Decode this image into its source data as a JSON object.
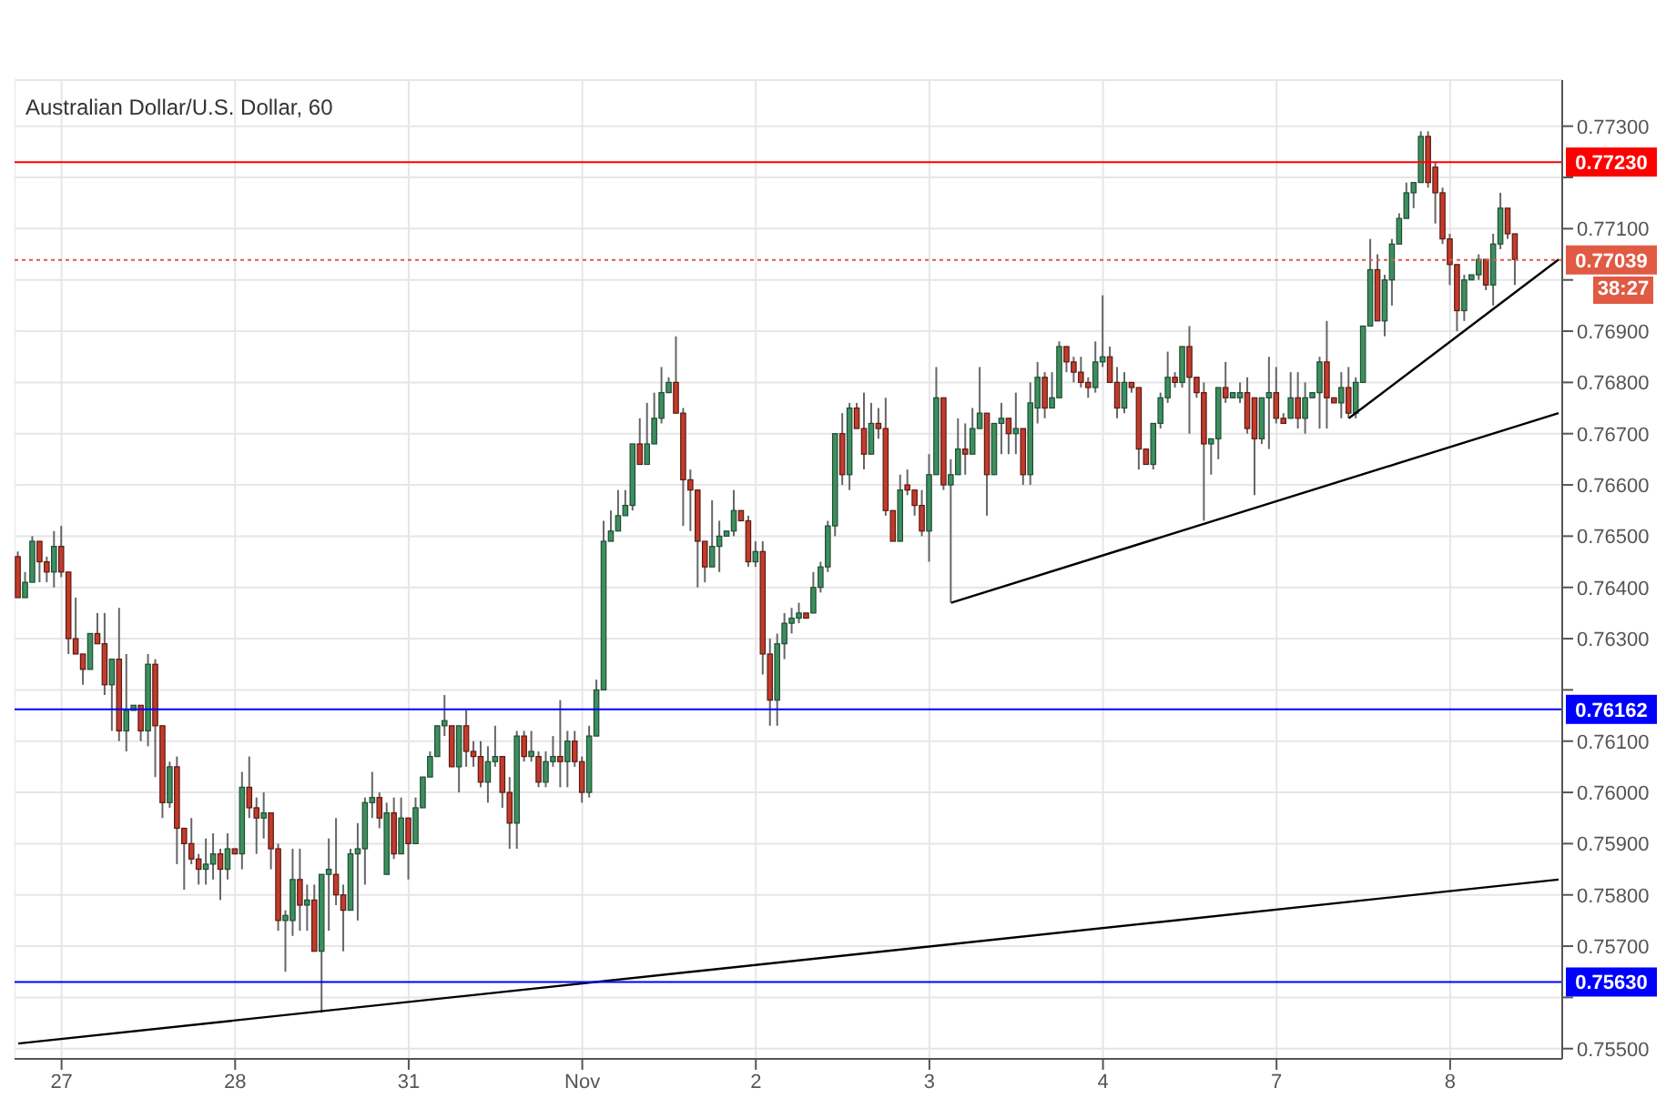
{
  "chart_data": {
    "type": "candlestick",
    "title": "Australian Dollar/U.S. Dollar, 60",
    "categories": [
      null,
      null,
      null,
      null,
      null,
      null,
      "27",
      null,
      null,
      null,
      null,
      null,
      null,
      null,
      null,
      null,
      null,
      null,
      null,
      null,
      null,
      null,
      null,
      null,
      null,
      null,
      null,
      null,
      null,
      null,
      "28",
      null,
      null,
      null,
      null,
      null,
      null,
      null,
      null,
      null,
      null,
      null,
      null,
      null,
      null,
      null,
      null,
      null,
      null,
      null,
      null,
      null,
      null,
      null,
      "31",
      null,
      null,
      null,
      null,
      null,
      null,
      null,
      null,
      null,
      null,
      null,
      null,
      null,
      null,
      null,
      null,
      null,
      null,
      null,
      null,
      null,
      null,
      null,
      "Nov",
      null,
      null,
      null,
      null,
      null,
      null,
      null,
      null,
      null,
      null,
      null,
      null,
      null,
      null,
      null,
      null,
      null,
      null,
      null,
      null,
      null,
      null,
      null,
      "2",
      null,
      null,
      null,
      null,
      null,
      null,
      null,
      null,
      null,
      null,
      null,
      null,
      null,
      null,
      null,
      null,
      null,
      null,
      null,
      null,
      null,
      null,
      null,
      "3",
      null,
      null,
      null,
      null,
      null,
      null,
      null,
      null,
      null,
      null,
      null,
      null,
      null,
      null,
      null,
      null,
      null,
      null,
      null,
      null,
      null,
      null,
      null,
      "4",
      null,
      null,
      null,
      null,
      null,
      null,
      null,
      null,
      null,
      null,
      null,
      null,
      null,
      null,
      null,
      null,
      null,
      null,
      null,
      null,
      null,
      null,
      null,
      "7",
      null,
      null,
      null,
      null,
      null,
      null,
      null,
      null,
      null,
      null,
      null,
      null,
      null,
      null,
      null,
      null,
      null,
      null,
      null,
      null,
      null,
      null,
      null,
      "8",
      null,
      null,
      null,
      null,
      null,
      null,
      null,
      null,
      null,
      null,
      null,
      null,
      null,
      null,
      null
    ],
    "ohlc": [
      [
        0.7646,
        0.7647,
        0.7638,
        0.7638
      ],
      [
        0.7638,
        0.7643,
        0.7638,
        0.7641
      ],
      [
        0.7641,
        0.765,
        0.7641,
        0.7649
      ],
      [
        0.7649,
        0.7649,
        0.7641,
        0.7645
      ],
      [
        0.7645,
        0.7646,
        0.7641,
        0.7643
      ],
      [
        0.7643,
        0.7651,
        0.764,
        0.7648
      ],
      [
        0.7648,
        0.7652,
        0.7642,
        0.7643
      ],
      [
        0.7643,
        0.7643,
        0.7627,
        0.763
      ],
      [
        0.763,
        0.7638,
        0.7627,
        0.7627
      ],
      [
        0.7627,
        0.7627,
        0.7621,
        0.7624
      ],
      [
        0.7624,
        0.7631,
        0.7624,
        0.7631
      ],
      [
        0.7631,
        0.7635,
        0.7629,
        0.7629
      ],
      [
        0.7629,
        0.7635,
        0.7619,
        0.7621
      ],
      [
        0.7621,
        0.7626,
        0.7612,
        0.7626
      ],
      [
        0.7626,
        0.7636,
        0.761,
        0.7612
      ],
      [
        0.7612,
        0.7627,
        0.7608,
        0.7616
      ],
      [
        0.7616,
        0.7617,
        0.7616,
        0.7617
      ],
      [
        0.7617,
        0.7617,
        0.761,
        0.7612
      ],
      [
        0.7612,
        0.7627,
        0.7609,
        0.7625
      ],
      [
        0.7625,
        0.7626,
        0.7603,
        0.7613
      ],
      [
        0.7613,
        0.7613,
        0.7595,
        0.7598
      ],
      [
        0.7598,
        0.7606,
        0.7597,
        0.7605
      ],
      [
        0.7605,
        0.7607,
        0.7586,
        0.7593
      ],
      [
        0.7593,
        0.7593,
        0.7581,
        0.759
      ],
      [
        0.759,
        0.7595,
        0.7586,
        0.7587
      ],
      [
        0.7587,
        0.7588,
        0.7582,
        0.7585
      ],
      [
        0.7585,
        0.7591,
        0.7582,
        0.7586
      ],
      [
        0.7586,
        0.7592,
        0.7583,
        0.7588
      ],
      [
        0.7588,
        0.7589,
        0.7579,
        0.7585
      ],
      [
        0.7585,
        0.7592,
        0.7583,
        0.7589
      ],
      [
        0.7589,
        0.7589,
        0.7588,
        0.7588
      ],
      [
        0.7588,
        0.7604,
        0.7585,
        0.7601
      ],
      [
        0.7601,
        0.7607,
        0.7595,
        0.7597
      ],
      [
        0.7597,
        0.7599,
        0.7588,
        0.7595
      ],
      [
        0.7595,
        0.76,
        0.7591,
        0.7596
      ],
      [
        0.7596,
        0.7596,
        0.7585,
        0.7589
      ],
      [
        0.7589,
        0.759,
        0.7573,
        0.7575
      ],
      [
        0.7575,
        0.7577,
        0.7565,
        0.7576
      ],
      [
        0.7575,
        0.7589,
        0.7572,
        0.7583
      ],
      [
        0.7583,
        0.7589,
        0.7573,
        0.7578
      ],
      [
        0.7578,
        0.7582,
        0.7573,
        0.7579
      ],
      [
        0.7579,
        0.7582,
        0.7569,
        0.7569
      ],
      [
        0.7569,
        0.7584,
        0.7557,
        0.7584
      ],
      [
        0.7584,
        0.7591,
        0.7573,
        0.7585
      ],
      [
        0.7584,
        0.7595,
        0.7578,
        0.758
      ],
      [
        0.758,
        0.7582,
        0.7569,
        0.7577
      ],
      [
        0.7577,
        0.7589,
        0.7577,
        0.7588
      ],
      [
        0.7588,
        0.7594,
        0.7575,
        0.7589
      ],
      [
        0.7589,
        0.7599,
        0.7582,
        0.7598
      ],
      [
        0.7598,
        0.7604,
        0.7595,
        0.7599
      ],
      [
        0.7599,
        0.76,
        0.7593,
        0.7595
      ],
      [
        0.7584,
        0.7598,
        0.7584,
        0.7596
      ],
      [
        0.7596,
        0.7599,
        0.7587,
        0.7588
      ],
      [
        0.7588,
        0.7599,
        0.7588,
        0.7595
      ],
      [
        0.7595,
        0.7595,
        0.7583,
        0.759
      ],
      [
        0.759,
        0.7599,
        0.759,
        0.7597
      ],
      [
        0.7597,
        0.7603,
        0.7597,
        0.7603
      ],
      [
        0.7603,
        0.7608,
        0.7603,
        0.7607
      ],
      [
        0.7607,
        0.7613,
        0.7607,
        0.7613
      ],
      [
        0.7613,
        0.7619,
        0.7611,
        0.7614
      ],
      [
        0.7613,
        0.7613,
        0.7605,
        0.7605
      ],
      [
        0.7605,
        0.7613,
        0.76,
        0.7613
      ],
      [
        0.7613,
        0.7616,
        0.7605,
        0.7608
      ],
      [
        0.7608,
        0.761,
        0.7605,
        0.7607
      ],
      [
        0.7607,
        0.761,
        0.7601,
        0.7602
      ],
      [
        0.7602,
        0.7609,
        0.7598,
        0.7606
      ],
      [
        0.7606,
        0.7613,
        0.7605,
        0.7607
      ],
      [
        0.7607,
        0.7607,
        0.7597,
        0.76
      ],
      [
        0.76,
        0.7603,
        0.7589,
        0.7594
      ],
      [
        0.7594,
        0.7612,
        0.7589,
        0.7611
      ],
      [
        0.7611,
        0.7612,
        0.7606,
        0.7607
      ],
      [
        0.7607,
        0.7612,
        0.7606,
        0.7608
      ],
      [
        0.7607,
        0.7608,
        0.7601,
        0.7602
      ],
      [
        0.7602,
        0.7608,
        0.7601,
        0.7606
      ],
      [
        0.7606,
        0.7611,
        0.7605,
        0.7607
      ],
      [
        0.7607,
        0.7618,
        0.7601,
        0.7606
      ],
      [
        0.7606,
        0.7612,
        0.7601,
        0.761
      ],
      [
        0.761,
        0.7612,
        0.7605,
        0.7606
      ],
      [
        0.7606,
        0.7607,
        0.7598,
        0.76
      ],
      [
        0.76,
        0.7613,
        0.7599,
        0.7611
      ],
      [
        0.7611,
        0.7622,
        0.7611,
        0.762
      ],
      [
        0.762,
        0.7653,
        0.762,
        0.7649
      ],
      [
        0.7649,
        0.7655,
        0.7649,
        0.7651
      ],
      [
        0.7651,
        0.7659,
        0.7651,
        0.7654
      ],
      [
        0.7654,
        0.7659,
        0.7654,
        0.7656
      ],
      [
        0.7656,
        0.7668,
        0.7655,
        0.7668
      ],
      [
        0.7668,
        0.7673,
        0.7664,
        0.7664
      ],
      [
        0.7664,
        0.7676,
        0.7664,
        0.7668
      ],
      [
        0.7668,
        0.7678,
        0.7668,
        0.7673
      ],
      [
        0.7673,
        0.7683,
        0.7672,
        0.7678
      ],
      [
        0.7678,
        0.7681,
        0.7678,
        0.768
      ],
      [
        0.768,
        0.7689,
        0.7674,
        0.7674
      ],
      [
        0.7674,
        0.7675,
        0.7652,
        0.7661
      ],
      [
        0.7661,
        0.7663,
        0.7651,
        0.7659
      ],
      [
        0.7659,
        0.7659,
        0.764,
        0.7649
      ],
      [
        0.7649,
        0.7649,
        0.7641,
        0.7644
      ],
      [
        0.7644,
        0.7657,
        0.7644,
        0.7648
      ],
      [
        0.7648,
        0.7653,
        0.7643,
        0.765
      ],
      [
        0.765,
        0.7651,
        0.765,
        0.7651
      ],
      [
        0.7651,
        0.7659,
        0.765,
        0.7655
      ],
      [
        0.7655,
        0.7655,
        0.7653,
        0.7653
      ],
      [
        0.7653,
        0.7654,
        0.7644,
        0.7645
      ],
      [
        0.7645,
        0.7649,
        0.7644,
        0.7647
      ],
      [
        0.7647,
        0.7649,
        0.7623,
        0.7627
      ],
      [
        0.7627,
        0.763,
        0.7613,
        0.7618
      ],
      [
        0.7618,
        0.7631,
        0.7613,
        0.7629
      ],
      [
        0.7629,
        0.7635,
        0.7626,
        0.7633
      ],
      [
        0.7633,
        0.7636,
        0.7631,
        0.7634
      ],
      [
        0.7634,
        0.7637,
        0.7633,
        0.7635
      ],
      [
        0.7635,
        0.7635,
        0.7634,
        0.7634
      ],
      [
        0.7635,
        0.7643,
        0.7635,
        0.764
      ],
      [
        0.764,
        0.7645,
        0.7639,
        0.7644
      ],
      [
        0.7644,
        0.7653,
        0.7643,
        0.7652
      ],
      [
        0.7652,
        0.767,
        0.765,
        0.767
      ],
      [
        0.767,
        0.7674,
        0.766,
        0.7662
      ],
      [
        0.7662,
        0.7676,
        0.7659,
        0.7675
      ],
      [
        0.7675,
        0.7676,
        0.7671,
        0.7671
      ],
      [
        0.7671,
        0.7678,
        0.7663,
        0.7666
      ],
      [
        0.7666,
        0.7676,
        0.7666,
        0.7672
      ],
      [
        0.7672,
        0.7675,
        0.7669,
        0.7671
      ],
      [
        0.7671,
        0.7677,
        0.7654,
        0.7655
      ],
      [
        0.7655,
        0.7655,
        0.7649,
        0.7649
      ],
      [
        0.7649,
        0.7662,
        0.7649,
        0.7659
      ],
      [
        0.766,
        0.7663,
        0.7658,
        0.7659
      ],
      [
        0.7659,
        0.7659,
        0.7654,
        0.7656
      ],
      [
        0.7656,
        0.7659,
        0.765,
        0.7651
      ],
      [
        0.7651,
        0.7666,
        0.7645,
        0.7662
      ],
      [
        0.7662,
        0.7683,
        0.7662,
        0.7677
      ],
      [
        0.7677,
        0.7677,
        0.7659,
        0.766
      ],
      [
        0.766,
        0.7665,
        0.7637,
        0.7662
      ],
      [
        0.7662,
        0.7673,
        0.7662,
        0.7667
      ],
      [
        0.7667,
        0.7672,
        0.7662,
        0.7666
      ],
      [
        0.7666,
        0.7675,
        0.7666,
        0.7671
      ],
      [
        0.7671,
        0.7683,
        0.7671,
        0.7674
      ],
      [
        0.7674,
        0.7674,
        0.7654,
        0.7662
      ],
      [
        0.7662,
        0.7672,
        0.7662,
        0.7672
      ],
      [
        0.7672,
        0.7676,
        0.7666,
        0.7673
      ],
      [
        0.7673,
        0.7673,
        0.7666,
        0.767
      ],
      [
        0.767,
        0.7678,
        0.7666,
        0.7671
      ],
      [
        0.7671,
        0.7671,
        0.766,
        0.7662
      ],
      [
        0.7662,
        0.768,
        0.766,
        0.7676
      ],
      [
        0.7675,
        0.7684,
        0.7672,
        0.7681
      ],
      [
        0.7681,
        0.7682,
        0.7673,
        0.7675
      ],
      [
        0.7675,
        0.7682,
        0.7675,
        0.7677
      ],
      [
        0.7677,
        0.7688,
        0.7677,
        0.7687
      ],
      [
        0.7687,
        0.7687,
        0.7682,
        0.7684
      ],
      [
        0.7684,
        0.7685,
        0.768,
        0.7682
      ],
      [
        0.7682,
        0.7685,
        0.7679,
        0.768
      ],
      [
        0.768,
        0.7681,
        0.7677,
        0.7679
      ],
      [
        0.7679,
        0.7688,
        0.7678,
        0.7684
      ],
      [
        0.7684,
        0.7697,
        0.7683,
        0.7685
      ],
      [
        0.7685,
        0.7687,
        0.768,
        0.768
      ],
      [
        0.768,
        0.7683,
        0.7673,
        0.7675
      ],
      [
        0.7675,
        0.7682,
        0.7674,
        0.768
      ],
      [
        0.768,
        0.768,
        0.7678,
        0.7679
      ],
      [
        0.7679,
        0.7679,
        0.7663,
        0.7667
      ],
      [
        0.7667,
        0.7667,
        0.7664,
        0.7664
      ],
      [
        0.7664,
        0.7672,
        0.7663,
        0.7672
      ],
      [
        0.7672,
        0.7678,
        0.7671,
        0.7677
      ],
      [
        0.7677,
        0.7686,
        0.7676,
        0.7681
      ],
      [
        0.7681,
        0.7682,
        0.7679,
        0.768
      ],
      [
        0.768,
        0.7687,
        0.7679,
        0.7687
      ],
      [
        0.7687,
        0.7691,
        0.767,
        0.7681
      ],
      [
        0.7681,
        0.7681,
        0.7677,
        0.7678
      ],
      [
        0.7678,
        0.768,
        0.7653,
        0.7668
      ],
      [
        0.7668,
        0.7669,
        0.7662,
        0.7669
      ],
      [
        0.7669,
        0.7679,
        0.7665,
        0.7679
      ],
      [
        0.7679,
        0.7684,
        0.7676,
        0.7677
      ],
      [
        0.7677,
        0.7678,
        0.7677,
        0.7678
      ],
      [
        0.7677,
        0.768,
        0.7676,
        0.7678
      ],
      [
        0.7678,
        0.7681,
        0.767,
        0.7671
      ],
      [
        0.7677,
        0.7677,
        0.7658,
        0.7669
      ],
      [
        0.7669,
        0.7677,
        0.7668,
        0.7677
      ],
      [
        0.7677,
        0.7685,
        0.7667,
        0.7678
      ],
      [
        0.7678,
        0.7683,
        0.7672,
        0.7673
      ],
      [
        0.7673,
        0.7674,
        0.7672,
        0.7672
      ],
      [
        0.7673,
        0.7682,
        0.7673,
        0.7677
      ],
      [
        0.7677,
        0.7682,
        0.7671,
        0.7673
      ],
      [
        0.7673,
        0.768,
        0.767,
        0.7677
      ],
      [
        0.7677,
        0.7678,
        0.7677,
        0.7678
      ],
      [
        0.7678,
        0.7685,
        0.7671,
        0.7684
      ],
      [
        0.7684,
        0.7692,
        0.7671,
        0.7677
      ],
      [
        0.7677,
        0.7677,
        0.7676,
        0.7676
      ],
      [
        0.7676,
        0.7682,
        0.7673,
        0.7679
      ],
      [
        0.7679,
        0.7683,
        0.7673,
        0.7674
      ],
      [
        0.7674,
        0.7681,
        0.7673,
        0.768
      ],
      [
        0.768,
        0.7691,
        0.768,
        0.7691
      ],
      [
        0.7691,
        0.7708,
        0.7691,
        0.7702
      ],
      [
        0.7702,
        0.7705,
        0.7692,
        0.7692
      ],
      [
        0.7692,
        0.7701,
        0.7689,
        0.77
      ],
      [
        0.77,
        0.7708,
        0.7695,
        0.7707
      ],
      [
        0.7707,
        0.7713,
        0.7707,
        0.7712
      ],
      [
        0.7712,
        0.7719,
        0.7712,
        0.7717
      ],
      [
        0.7717,
        0.7719,
        0.7714,
        0.7719
      ],
      [
        0.7719,
        0.7729,
        0.7719,
        0.7728
      ],
      [
        0.7728,
        0.7729,
        0.7718,
        0.7719
      ],
      [
        0.7722,
        0.7723,
        0.7711,
        0.7717
      ],
      [
        0.7717,
        0.7718,
        0.7707,
        0.7708
      ],
      [
        0.7708,
        0.7709,
        0.7699,
        0.7703
      ],
      [
        0.7703,
        0.7703,
        0.769,
        0.7694
      ],
      [
        0.7694,
        0.7701,
        0.7692,
        0.77
      ],
      [
        0.77,
        0.7701,
        0.77,
        0.7701
      ],
      [
        0.7701,
        0.7705,
        0.77,
        0.7704
      ],
      [
        0.7704,
        0.7704,
        0.7698,
        0.7699
      ],
      [
        0.7699,
        0.7709,
        0.7695,
        0.7707
      ],
      [
        0.7707,
        0.7717,
        0.7706,
        0.7714
      ],
      [
        0.7714,
        0.7714,
        0.7708,
        0.7709
      ],
      [
        0.7709,
        0.7709,
        0.7699,
        0.7704
      ],
      null,
      null,
      null,
      null,
      null,
      null
    ],
    "series": [
      {
        "type": "line",
        "color": "#000000",
        "values": [
          0.7551,
          null,
          null,
          null,
          null,
          null,
          null,
          null,
          null,
          null,
          null,
          null,
          null,
          null,
          null,
          null,
          null,
          null,
          null,
          null,
          null,
          null,
          null,
          null,
          null,
          null,
          null,
          null,
          null,
          null,
          null,
          null,
          null,
          null,
          null,
          null,
          null,
          null,
          null,
          null,
          null,
          null,
          null,
          null,
          null,
          null,
          null,
          null,
          null,
          null,
          null,
          null,
          null,
          null,
          null,
          null,
          null,
          null,
          null,
          null,
          null,
          null,
          null,
          null,
          null,
          null,
          null,
          null,
          null,
          null,
          null,
          null,
          null,
          null,
          null,
          null,
          null,
          null,
          null,
          null,
          null,
          null,
          null,
          null,
          null,
          null,
          null,
          null,
          null,
          null,
          null,
          null,
          null,
          null,
          null,
          null,
          null,
          null,
          null,
          null,
          null,
          null,
          null,
          null,
          null,
          null,
          null,
          null,
          null,
          null,
          null,
          null,
          null,
          null,
          null,
          null,
          null,
          null,
          null,
          null,
          null,
          null,
          null,
          null,
          null,
          null,
          null,
          null,
          null,
          null,
          null,
          null,
          null,
          null,
          null,
          null,
          null,
          null,
          null,
          null,
          null,
          null,
          null,
          null,
          null,
          null,
          null,
          null,
          null,
          null,
          null,
          null,
          null,
          null,
          null,
          null,
          null,
          null,
          null,
          null,
          null,
          null,
          null,
          null,
          null,
          null,
          null,
          null,
          null,
          null,
          null,
          null,
          null,
          null,
          null,
          null,
          null,
          null,
          null,
          null,
          null,
          null,
          null,
          null,
          null,
          null,
          null,
          null,
          null,
          null,
          null,
          null,
          null,
          null,
          null,
          null,
          null,
          null,
          null,
          null,
          null,
          null,
          null,
          null,
          null,
          null,
          null,
          null,
          null,
          null,
          null,
          null,
          null,
          0.7583
        ]
      },
      {
        "type": "line",
        "color": "#000000",
        "values": [
          null,
          null,
          null,
          null,
          null,
          null,
          null,
          null,
          null,
          null,
          null,
          null,
          null,
          null,
          null,
          null,
          null,
          null,
          null,
          null,
          null,
          null,
          null,
          null,
          null,
          null,
          null,
          null,
          null,
          null,
          null,
          null,
          null,
          null,
          null,
          null,
          null,
          null,
          null,
          null,
          null,
          null,
          null,
          null,
          null,
          null,
          null,
          null,
          null,
          null,
          null,
          null,
          null,
          null,
          null,
          null,
          null,
          null,
          null,
          null,
          null,
          null,
          null,
          null,
          null,
          null,
          null,
          null,
          null,
          null,
          null,
          null,
          null,
          null,
          null,
          null,
          null,
          null,
          null,
          null,
          null,
          null,
          null,
          null,
          null,
          null,
          null,
          null,
          null,
          null,
          null,
          null,
          null,
          null,
          null,
          null,
          null,
          null,
          null,
          null,
          null,
          null,
          null,
          null,
          null,
          null,
          null,
          null,
          null,
          null,
          null,
          null,
          null,
          null,
          null,
          null,
          null,
          null,
          null,
          null,
          null,
          null,
          null,
          null,
          null,
          null,
          null,
          null,
          null,
          0.7637,
          null,
          null,
          null,
          null,
          null,
          null,
          null,
          null,
          null,
          null,
          null,
          null,
          null,
          null,
          null,
          null,
          null,
          null,
          null,
          null,
          null,
          null,
          null,
          null,
          null,
          null,
          null,
          null,
          null,
          null,
          null,
          null,
          null,
          null,
          null,
          null,
          null,
          null,
          null,
          null,
          null,
          null,
          null,
          null,
          null,
          null,
          null,
          null,
          null,
          null,
          null,
          null,
          null,
          null,
          null,
          null,
          null,
          null,
          null,
          null,
          null,
          null,
          null,
          null,
          null,
          null,
          null,
          null,
          null,
          null,
          null,
          null,
          null,
          null,
          null,
          null,
          null,
          null,
          null,
          null,
          null,
          null,
          null,
          0.7674
        ]
      },
      {
        "type": "line",
        "color": "#000000",
        "values": [
          null,
          null,
          null,
          null,
          null,
          null,
          null,
          null,
          null,
          null,
          null,
          null,
          null,
          null,
          null,
          null,
          null,
          null,
          null,
          null,
          null,
          null,
          null,
          null,
          null,
          null,
          null,
          null,
          null,
          null,
          null,
          null,
          null,
          null,
          null,
          null,
          null,
          null,
          null,
          null,
          null,
          null,
          null,
          null,
          null,
          null,
          null,
          null,
          null,
          null,
          null,
          null,
          null,
          null,
          null,
          null,
          null,
          null,
          null,
          null,
          null,
          null,
          null,
          null,
          null,
          null,
          null,
          null,
          null,
          null,
          null,
          null,
          null,
          null,
          null,
          null,
          null,
          null,
          null,
          null,
          null,
          null,
          null,
          null,
          null,
          null,
          null,
          null,
          null,
          null,
          null,
          null,
          null,
          null,
          null,
          null,
          null,
          null,
          null,
          null,
          null,
          null,
          null,
          null,
          null,
          null,
          null,
          null,
          null,
          null,
          null,
          null,
          null,
          null,
          null,
          null,
          null,
          null,
          null,
          null,
          null,
          null,
          null,
          null,
          null,
          null,
          null,
          null,
          null,
          null,
          null,
          null,
          null,
          null,
          null,
          null,
          null,
          null,
          null,
          null,
          null,
          null,
          null,
          null,
          null,
          null,
          null,
          null,
          null,
          null,
          null,
          null,
          null,
          null,
          null,
          null,
          null,
          null,
          null,
          null,
          null,
          null,
          null,
          null,
          null,
          null,
          null,
          null,
          null,
          null,
          null,
          null,
          null,
          null,
          null,
          null,
          null,
          null,
          null,
          null,
          null,
          null,
          null,
          null,
          0.7673,
          null,
          null,
          null,
          null,
          null,
          null,
          null,
          null,
          null,
          null,
          null,
          null,
          null,
          null,
          null,
          null,
          null,
          null,
          null,
          null,
          null,
          null,
          null,
          null,
          null,
          null,
          null,
          null,
          0.7704
        ]
      }
    ],
    "ylim": [
      0.7548,
      0.7739
    ],
    "yticks": [
      {
        "value": 0.755,
        "label": "0.75500"
      },
      {
        "value": 0.756,
        "label": null
      },
      {
        "value": 0.757,
        "label": "0.75700"
      },
      {
        "value": 0.758,
        "label": "0.75800"
      },
      {
        "value": 0.759,
        "label": "0.75900"
      },
      {
        "value": 0.76,
        "label": "0.76000"
      },
      {
        "value": 0.761,
        "label": "0.76100"
      },
      {
        "value": 0.762,
        "label": null
      },
      {
        "value": 0.763,
        "label": "0.76300"
      },
      {
        "value": 0.764,
        "label": "0.76400"
      },
      {
        "value": 0.765,
        "label": "0.76500"
      },
      {
        "value": 0.766,
        "label": "0.76600"
      },
      {
        "value": 0.767,
        "label": "0.76700"
      },
      {
        "value": 0.768,
        "label": "0.76800"
      },
      {
        "value": 0.769,
        "label": "0.76900"
      },
      {
        "value": 0.77,
        "label": null
      },
      {
        "value": 0.771,
        "label": "0.77100"
      },
      {
        "value": 0.772,
        "label": null
      },
      {
        "value": 0.773,
        "label": "0.77300"
      }
    ],
    "ref_lines": [
      {
        "axis": "y",
        "value": 0.7723,
        "label": "0.77230",
        "color": "#ff0000"
      },
      {
        "axis": "y",
        "value": 0.77039,
        "label": "0.77039",
        "color": "#e05a44",
        "line_style": "dotted"
      },
      {
        "axis": "y",
        "value": 0.76162,
        "label": "0.76162",
        "color": "#0000ff"
      },
      {
        "axis": "y",
        "value": 0.7563,
        "label": "0.75630",
        "color": "#0000ff"
      }
    ],
    "annotations": [
      "38:27"
    ],
    "grid": true
  }
}
